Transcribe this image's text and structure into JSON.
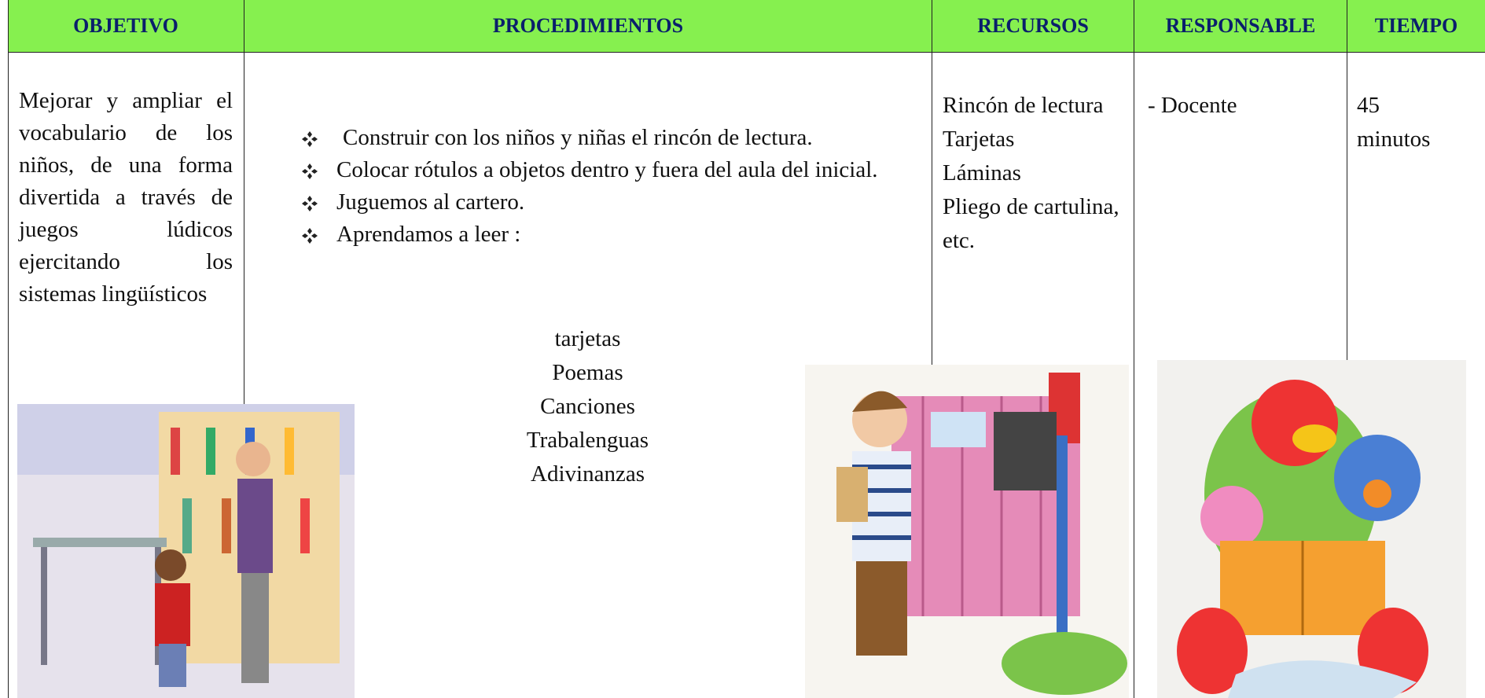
{
  "table": {
    "headers": [
      "OBJETIVO",
      "PROCEDIMIENTOS",
      "RECURSOS",
      "RESPONSABLE",
      "TIEMPO"
    ],
    "objective": "Mejorar y ampliar el vocabulario de los niños, de una forma divertida a través de juegos lúdicos ejercitando los sistemas lingüísticos",
    "procedures": [
      "Construir con los niños y niñas el rincón de lectura.",
      "Colocar rótulos a objetos dentro y fuera del aula del inicial.",
      "Juguemos al cartero.",
      "Aprendamos a leer :"
    ],
    "reading_items": [
      "tarjetas",
      "Poemas",
      "Canciones",
      "Trabalenguas",
      "Adivinanzas"
    ],
    "resources": [
      "Rincón de lectura",
      "Tarjetas",
      "Láminas",
      "Pliego de cartulina, etc."
    ],
    "responsible": "- Docente",
    "time": "45 minutos"
  }
}
